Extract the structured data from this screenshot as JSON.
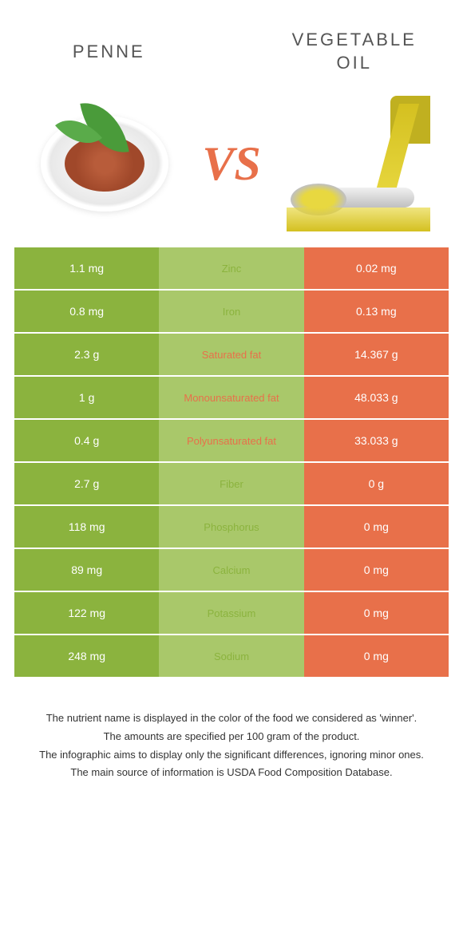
{
  "colors": {
    "green": "#8bb33e",
    "lightgreen": "#a9c86a",
    "orange": "#e8704a",
    "vs": "#e8704a"
  },
  "header": {
    "left": "PENNE",
    "right_line1": "VEGETABLE",
    "right_line2": "OIL",
    "vs": "VS"
  },
  "rows": [
    {
      "left": "1.1 mg",
      "mid": "Zinc",
      "right": "0.02 mg",
      "winner": "left"
    },
    {
      "left": "0.8 mg",
      "mid": "Iron",
      "right": "0.13 mg",
      "winner": "left"
    },
    {
      "left": "2.3 g",
      "mid": "Saturated fat",
      "right": "14.367 g",
      "winner": "right"
    },
    {
      "left": "1 g",
      "mid": "Monounsaturated fat",
      "right": "48.033 g",
      "winner": "right"
    },
    {
      "left": "0.4 g",
      "mid": "Polyunsaturated fat",
      "right": "33.033 g",
      "winner": "right"
    },
    {
      "left": "2.7 g",
      "mid": "Fiber",
      "right": "0 g",
      "winner": "left"
    },
    {
      "left": "118 mg",
      "mid": "Phosphorus",
      "right": "0 mg",
      "winner": "left"
    },
    {
      "left": "89 mg",
      "mid": "Calcium",
      "right": "0 mg",
      "winner": "left"
    },
    {
      "left": "122 mg",
      "mid": "Potassium",
      "right": "0 mg",
      "winner": "left"
    },
    {
      "left": "248 mg",
      "mid": "Sodium",
      "right": "0 mg",
      "winner": "left"
    }
  ],
  "footer": {
    "line1": "The nutrient name is displayed in the color of the food we considered as 'winner'.",
    "line2": "The amounts are specified per 100 gram of the product.",
    "line3": "The infographic aims to display only the significant differences, ignoring minor ones.",
    "line4": "The main source of information is USDA Food Composition Database."
  }
}
